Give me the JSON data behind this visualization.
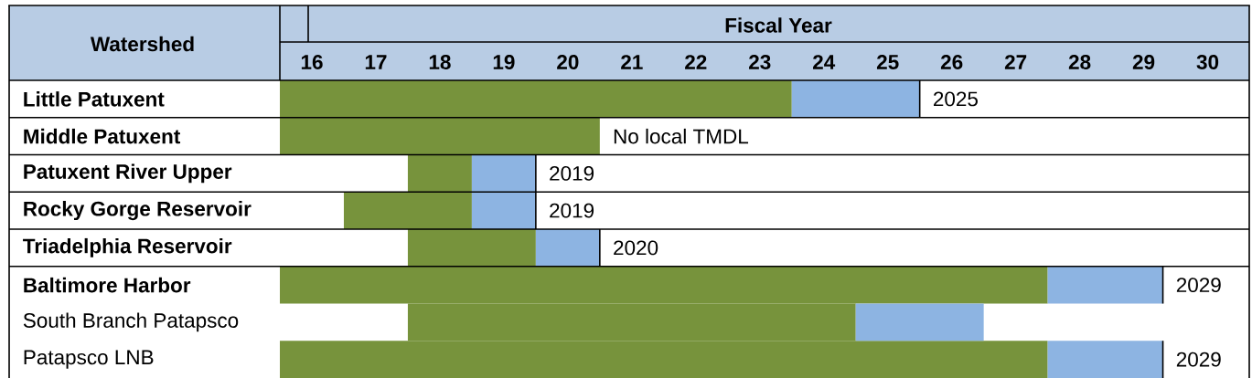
{
  "chart_data": {
    "type": "bar",
    "orientation": "horizontal",
    "grid": "y",
    "xlabel": "Fiscal Year",
    "ylabel": "Watershed",
    "categories": [
      "Little Patuxent",
      "Middle Patuxent",
      "Patuxent River Upper",
      "Rocky Gorge Reservoir",
      "Triadelphia Reservoir",
      "Baltimore Harbor",
      "South Branch Patapsco",
      "Patapsco LNB"
    ],
    "series": [
      {
        "color": "#77933c",
        "base": [
          15.5,
          15.5,
          17.5,
          16.5,
          17.5,
          15.5,
          17.5,
          15.5
        ],
        "values": [
          8,
          5,
          1,
          2,
          2,
          12,
          7,
          12
        ]
      },
      {
        "color": "#8db4e2",
        "base": [
          23.5,
          null,
          18.5,
          18.5,
          19.5,
          27.5,
          24.5,
          27.5
        ],
        "values": [
          2,
          null,
          1,
          1,
          1,
          1.8,
          2,
          1.8
        ]
      }
    ],
    "xlim": [
      15.5,
      30.65
    ],
    "xticks": [
      16,
      17,
      18,
      19,
      20,
      21,
      22,
      23,
      24,
      25,
      26,
      27,
      28,
      29,
      30
    ],
    "annotations": [
      {
        "text": "2025",
        "x": 25.5,
        "y": "Little Patuxent"
      },
      {
        "text": "No local TMDL",
        "x": 20.5,
        "y": "Middle Patuxent"
      },
      {
        "text": "2019",
        "x": 19.5,
        "y": "Patuxent River Upper"
      },
      {
        "text": "2019",
        "x": 19.5,
        "y": "Rocky Gorge Reservoir"
      },
      {
        "text": "2020",
        "x": 20.5,
        "y": "Triadelphia Reservoir"
      },
      {
        "text": "2029",
        "x": 29.3,
        "y": "Baltimore Harbor"
      },
      {
        "text": "2029",
        "x": 29.3,
        "y": "Patapsco LNB"
      }
    ]
  }
}
